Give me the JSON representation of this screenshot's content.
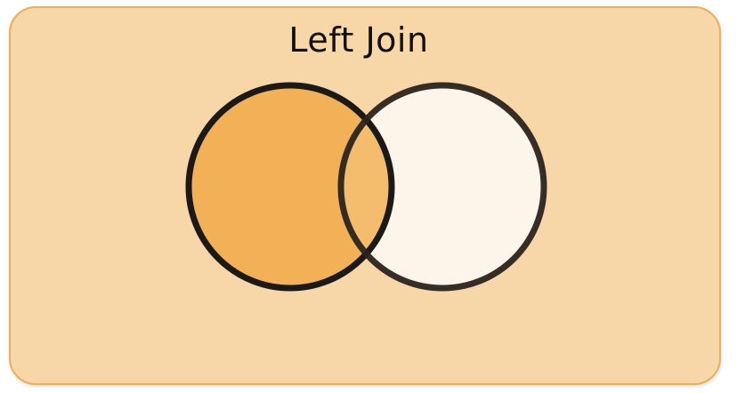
{
  "title": "Left Join",
  "colors": {
    "background": "#f7d6a8",
    "border": "#f0ad57",
    "left_set_fill": "#f2b157",
    "right_set_fill": "#fdf4ea",
    "outline": "#1c1a18"
  },
  "sets": [
    {
      "role": "left",
      "highlighted": true
    },
    {
      "role": "right",
      "highlighted": false
    }
  ]
}
